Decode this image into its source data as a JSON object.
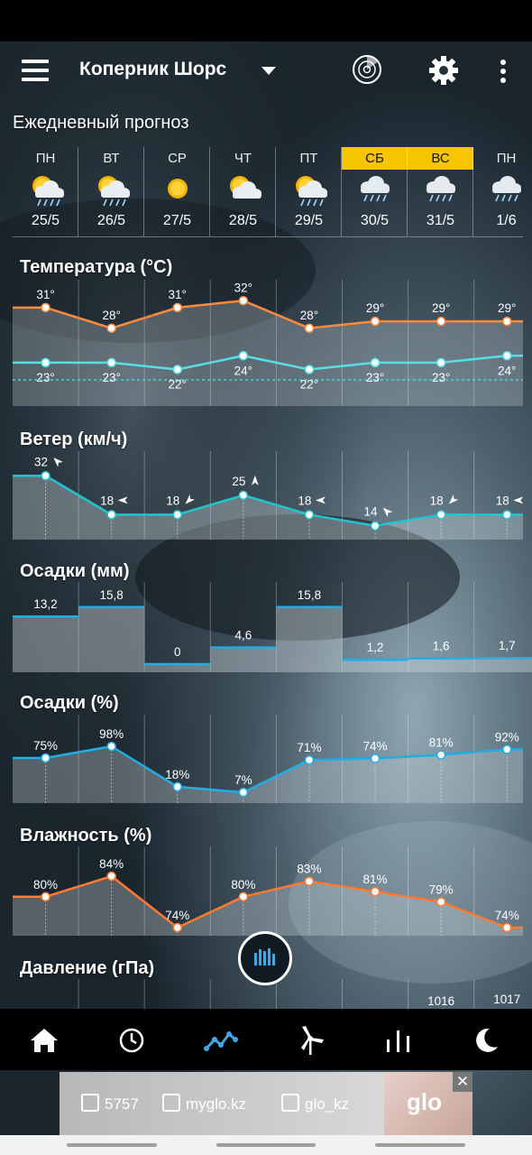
{
  "app": {
    "location": "Коперник Шорс",
    "section_daily": "Ежедневный прогноз",
    "icons": [
      "menu-icon",
      "dropdown-caret-icon",
      "radar-icon",
      "gear-icon",
      "more-vert-icon"
    ]
  },
  "days": [
    {
      "name": "ПН",
      "date": "25/5",
      "icon": "sun-cloud-rain",
      "weekend": false
    },
    {
      "name": "ВТ",
      "date": "26/5",
      "icon": "sun-cloud-rain",
      "weekend": false
    },
    {
      "name": "СР",
      "date": "27/5",
      "icon": "sun",
      "weekend": false
    },
    {
      "name": "ЧТ",
      "date": "28/5",
      "icon": "sun-cloud",
      "weekend": false
    },
    {
      "name": "ПТ",
      "date": "29/5",
      "icon": "sun-cloud-rain",
      "weekend": false
    },
    {
      "name": "СБ",
      "date": "30/5",
      "icon": "cloud-rain",
      "weekend": true
    },
    {
      "name": "ВС",
      "date": "31/5",
      "icon": "cloud-rain",
      "weekend": true
    },
    {
      "name": "ПН",
      "date": "1/6",
      "icon": "cloud-rain",
      "weekend": false
    }
  ],
  "sections": {
    "temperature": "Температура (°C)",
    "wind": "Ветер (км/ч)",
    "precip_mm": "Осадки (мм)",
    "precip_pct": "Осадки (%)",
    "humidity": "Влажность (%)",
    "pressure": "Давление (гПа)"
  },
  "chart_data": [
    {
      "type": "line",
      "title": "Температура (°C)",
      "categories": [
        "25/5",
        "26/5",
        "27/5",
        "28/5",
        "29/5",
        "30/5",
        "31/5",
        "1/6"
      ],
      "series": [
        {
          "values": [
            31,
            28,
            31,
            32,
            28,
            29,
            29,
            29
          ],
          "color": "#ff8a3d"
        },
        {
          "values": [
            23,
            23,
            22,
            24,
            22,
            23,
            23,
            24
          ],
          "color": "#55e0e8"
        }
      ],
      "labels_max": [
        "31°",
        "28°",
        "31°",
        "32°",
        "28°",
        "29°",
        "29°",
        "29°"
      ],
      "labels_min": [
        "23°",
        "23°",
        "22°",
        "24°",
        "22°",
        "23°",
        "23°",
        "24°"
      ]
    },
    {
      "type": "line",
      "title": "Ветер (км/ч)",
      "categories": [
        "25/5",
        "26/5",
        "27/5",
        "28/5",
        "29/5",
        "30/5",
        "31/5",
        "1/6"
      ],
      "series": [
        {
          "values": [
            32,
            18,
            18,
            25,
            18,
            14,
            18,
            18
          ],
          "color": "#22c4cf"
        }
      ],
      "labels": [
        "32",
        "18",
        "18",
        "25",
        "18",
        "14",
        "18",
        "18"
      ],
      "directions": [
        315,
        270,
        225,
        0,
        270,
        315,
        225,
        270
      ]
    },
    {
      "type": "bar",
      "title": "Осадки (мм)",
      "categories": [
        "25/5",
        "26/5",
        "27/5",
        "28/5",
        "29/5",
        "30/5",
        "31/5",
        "1/6"
      ],
      "values": [
        13.2,
        15.8,
        0,
        4.6,
        15.8,
        1.2,
        1.6,
        1.7
      ],
      "labels": [
        "13,2",
        "15,8",
        "0",
        "4,6",
        "15,8",
        "1,2",
        "1,6",
        "1,7"
      ],
      "color": "#1faee6"
    },
    {
      "type": "line",
      "title": "Осадки (%)",
      "categories": [
        "25/5",
        "26/5",
        "27/5",
        "28/5",
        "29/5",
        "30/5",
        "31/5",
        "1/6"
      ],
      "series": [
        {
          "values": [
            75,
            98,
            18,
            7,
            71,
            74,
            81,
            92
          ],
          "color": "#1faee6"
        }
      ],
      "labels": [
        "75%",
        "98%",
        "18%",
        "7%",
        "71%",
        "74%",
        "81%",
        "92%"
      ]
    },
    {
      "type": "line",
      "title": "Влажность (%)",
      "categories": [
        "25/5",
        "26/5",
        "27/5",
        "28/5",
        "29/5",
        "30/5",
        "31/5",
        "1/6"
      ],
      "series": [
        {
          "values": [
            80,
            84,
            74,
            80,
            83,
            81,
            79,
            74
          ],
          "color": "#ff7a2f"
        }
      ],
      "labels": [
        "80%",
        "84%",
        "74%",
        "80%",
        "83%",
        "81%",
        "79%",
        "74%"
      ]
    },
    {
      "type": "line",
      "title": "Давление (гПа)",
      "categories": [
        "31/5",
        "1/6"
      ],
      "series": [
        {
          "values": [
            1016,
            1017
          ]
        }
      ],
      "labels": [
        "1016",
        "1017"
      ]
    }
  ],
  "nav": [
    "home-icon",
    "clock-icon",
    "trend-chart-icon",
    "wind-turbine-icon",
    "bars-icon",
    "moon-icon"
  ],
  "ad": {
    "phone": "5757",
    "site": "myglo.kz",
    "insta": "glo_kz",
    "brand": "glo",
    "close": "✕"
  }
}
